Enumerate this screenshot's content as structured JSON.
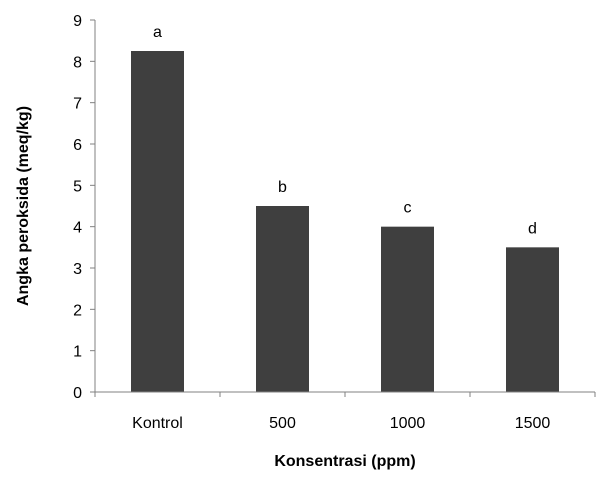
{
  "chart_data": {
    "type": "bar",
    "title": "",
    "xlabel": "Konsentrasi (ppm)",
    "ylabel": "Angka peroksida (meq/kg)",
    "categories": [
      "Kontrol",
      "500",
      "1000",
      "1500"
    ],
    "values": [
      8.25,
      4.5,
      4.0,
      3.5
    ],
    "annotations": [
      "a",
      "b",
      "c",
      "d"
    ],
    "ylim": [
      0,
      9
    ],
    "yticks": [
      "0",
      "1",
      "2",
      "3",
      "4",
      "5",
      "6",
      "7",
      "8",
      "9"
    ],
    "grid": false,
    "legend": "none",
    "bar_color": "#3f3f3f"
  }
}
